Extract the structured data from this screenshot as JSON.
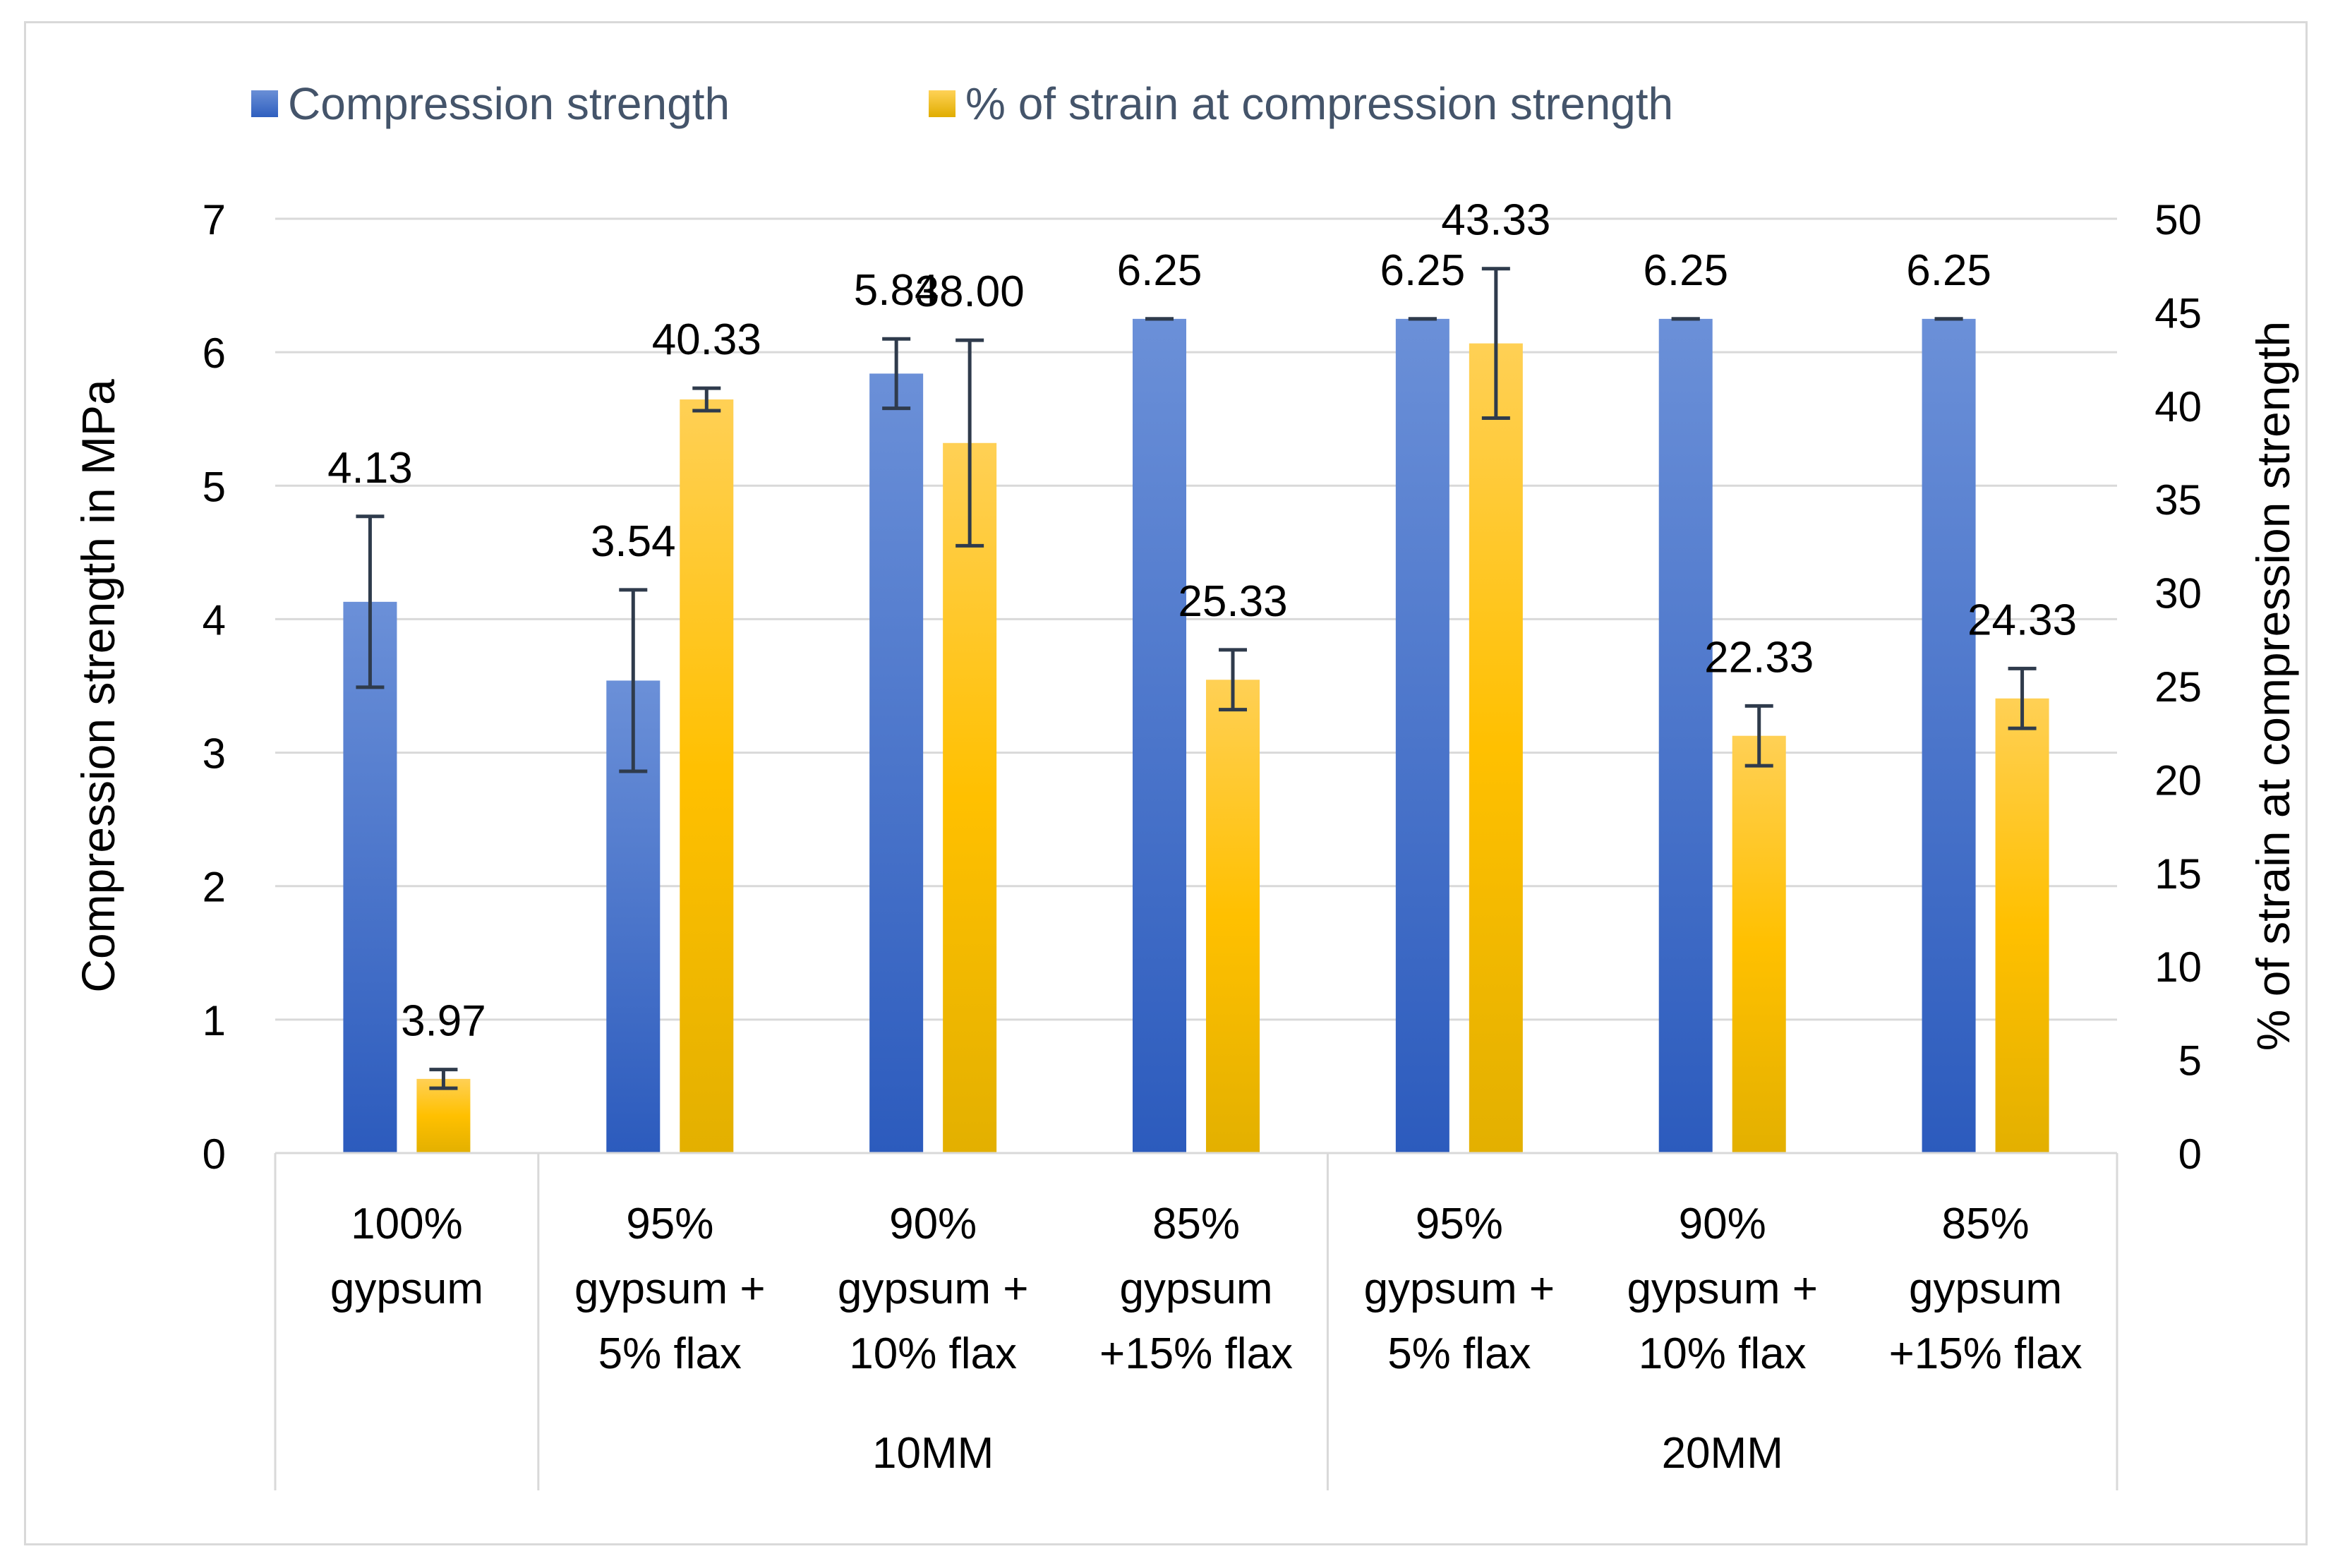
{
  "chart_data": {
    "type": "bar",
    "legend_position": "top-left",
    "series": [
      {
        "name": "Compression strength",
        "axis": "left",
        "color": "#4472c4",
        "values": [
          4.13,
          3.54,
          5.84,
          6.25,
          6.25,
          6.25,
          6.25
        ],
        "labels": [
          "4.13",
          "3.54",
          "5.84",
          "6.25",
          "6.25",
          "6.25",
          "6.25"
        ],
        "error": [
          0.64,
          0.68,
          0.26,
          0.0,
          0.0,
          0.0,
          0.0
        ]
      },
      {
        "name": "% of strain at compression strength",
        "axis": "right",
        "color": "#ffc000",
        "values": [
          3.97,
          40.33,
          38.0,
          25.33,
          43.33,
          22.33,
          24.33
        ],
        "labels": [
          "3.97",
          "40.33",
          "38.00",
          "25.33",
          "43.33",
          "22.33",
          "24.33"
        ],
        "error": [
          0.5,
          0.6,
          5.5,
          1.6,
          4.0,
          1.6,
          1.6
        ]
      }
    ],
    "categories": [
      [
        "100%",
        "gypsum"
      ],
      [
        "95%",
        "gypsum +",
        "5% flax"
      ],
      [
        "90%",
        "gypsum +",
        "10% flax"
      ],
      [
        "85%",
        "gypsum",
        "+15% flax"
      ],
      [
        "95%",
        "gypsum +",
        "5% flax"
      ],
      [
        "90%",
        "gypsum +",
        "10% flax"
      ],
      [
        "85%",
        "gypsum",
        "+15% flax"
      ]
    ],
    "groups": [
      {
        "label": "",
        "span": 1
      },
      {
        "label": "10MM",
        "span": 3
      },
      {
        "label": "20MM",
        "span": 3
      }
    ],
    "ylabel_left": "Compression strength in MPa",
    "ylabel_right": "% of strain at compression strength",
    "ylim_left": [
      0,
      7
    ],
    "ylim_right": [
      0,
      50
    ],
    "yticks_left": [
      "0",
      "1",
      "2",
      "3",
      "4",
      "5",
      "6",
      "7"
    ],
    "yticks_right": [
      "0",
      "5",
      "10",
      "15",
      "20",
      "25",
      "30",
      "35",
      "40",
      "45",
      "50"
    ],
    "grid": true
  }
}
